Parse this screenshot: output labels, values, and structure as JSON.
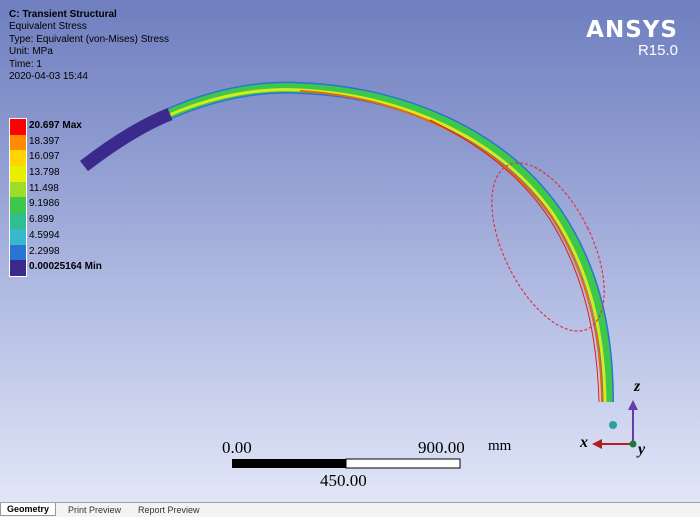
{
  "info": {
    "title": "C: Transient Structural",
    "lines": [
      "Equivalent Stress",
      "Type: Equivalent (von-Mises) Stress",
      "Unit: MPa",
      "Time: 1",
      "2020-04-03 15:44"
    ]
  },
  "brand": {
    "name": "ANSYS",
    "release": "R15.0"
  },
  "legend": {
    "labels": [
      "20.697 Max",
      "18.397",
      "16.097",
      "13.798",
      "11.498",
      "9.1986",
      "6.899",
      "4.5994",
      "2.2998",
      "0.00025164 Min"
    ],
    "colors": [
      "#ff0000",
      "#ff8c00",
      "#ffd400",
      "#e8f000",
      "#9edc2a",
      "#3ec84a",
      "#2fbf8f",
      "#39b7cc",
      "#2a74d6",
      "#3a2a8c"
    ]
  },
  "scale": {
    "left": "0.00",
    "right": "900.00",
    "unit": "mm",
    "mid": "450.00"
  },
  "triad": {
    "x": "x",
    "y": "y",
    "z": "z"
  },
  "tabs": [
    "Geometry",
    "Print Preview",
    "Report Preview"
  ]
}
